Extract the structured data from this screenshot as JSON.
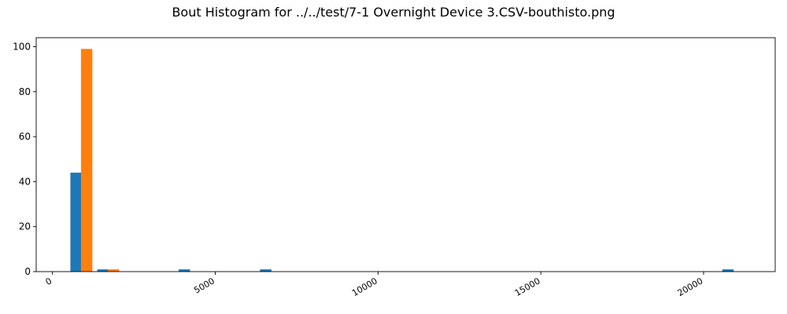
{
  "chart_data": {
    "type": "bar",
    "title": "Bout Histogram for ../../test/7-1 Overnight Device 3.CSV-bouthisto.png",
    "xlabel": "",
    "ylabel": "",
    "xlim": [
      -500,
      22200
    ],
    "ylim": [
      0,
      104
    ],
    "grid": false,
    "legend": "none",
    "xticks": [
      0,
      5000,
      10000,
      15000,
      20000
    ],
    "yticks": [
      0,
      20,
      40,
      60,
      80,
      100
    ],
    "bin_width": 350,
    "series": [
      {
        "color": "#1f77b4",
        "bars": [
          {
            "x": 725,
            "value": 44
          },
          {
            "x": 1550,
            "value": 1
          },
          {
            "x": 4050,
            "value": 1
          },
          {
            "x": 6550,
            "value": 1
          },
          {
            "x": 20750,
            "value": 1
          }
        ]
      },
      {
        "color": "#ff7f0e",
        "bars": [
          {
            "x": 1050,
            "value": 99
          },
          {
            "x": 1875,
            "value": 1
          }
        ]
      }
    ]
  }
}
